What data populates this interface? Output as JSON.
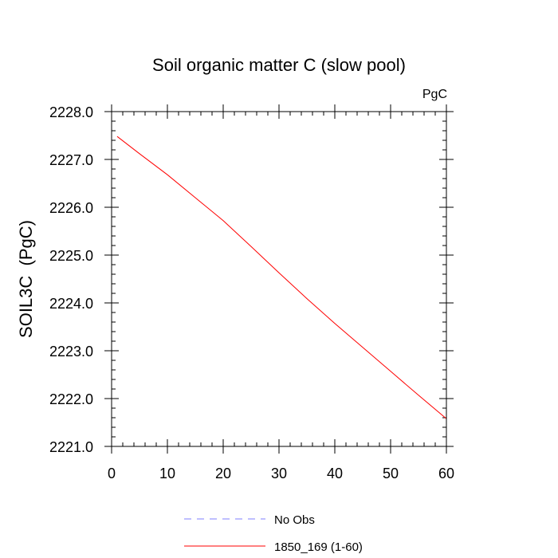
{
  "chart_data": {
    "type": "line",
    "title": "Soil organic matter C (slow pool)",
    "units": "PgC",
    "ylabel": "SOIL3C  (PgC)",
    "xlabel": "",
    "xlim": [
      0,
      60
    ],
    "ylim": [
      2221.0,
      2228.0
    ],
    "x_ticks": [
      0,
      10,
      20,
      30,
      40,
      50,
      60
    ],
    "y_ticks": [
      2221.0,
      2222.0,
      2223.0,
      2224.0,
      2225.0,
      2226.0,
      2227.0,
      2228.0
    ],
    "y_tick_labels": [
      "2221.0",
      "2222.0",
      "2223.0",
      "2224.0",
      "2225.0",
      "2226.0",
      "2227.0",
      "2228.0"
    ],
    "grid": false,
    "legend_position": "bottom",
    "series": [
      {
        "name": "No Obs",
        "color": "#7f7fff",
        "dash": "dashed",
        "x": [],
        "y": []
      },
      {
        "name": "1850_169 (1-60)",
        "color": "#ff0000",
        "dash": "solid",
        "x": [
          1,
          5,
          10,
          15,
          20,
          25,
          30,
          35,
          40,
          45,
          50,
          55,
          60
        ],
        "y": [
          2227.48,
          2227.12,
          2226.68,
          2226.2,
          2225.72,
          2225.18,
          2224.63,
          2224.09,
          2223.57,
          2223.07,
          2222.57,
          2222.07,
          2221.58
        ]
      }
    ]
  }
}
